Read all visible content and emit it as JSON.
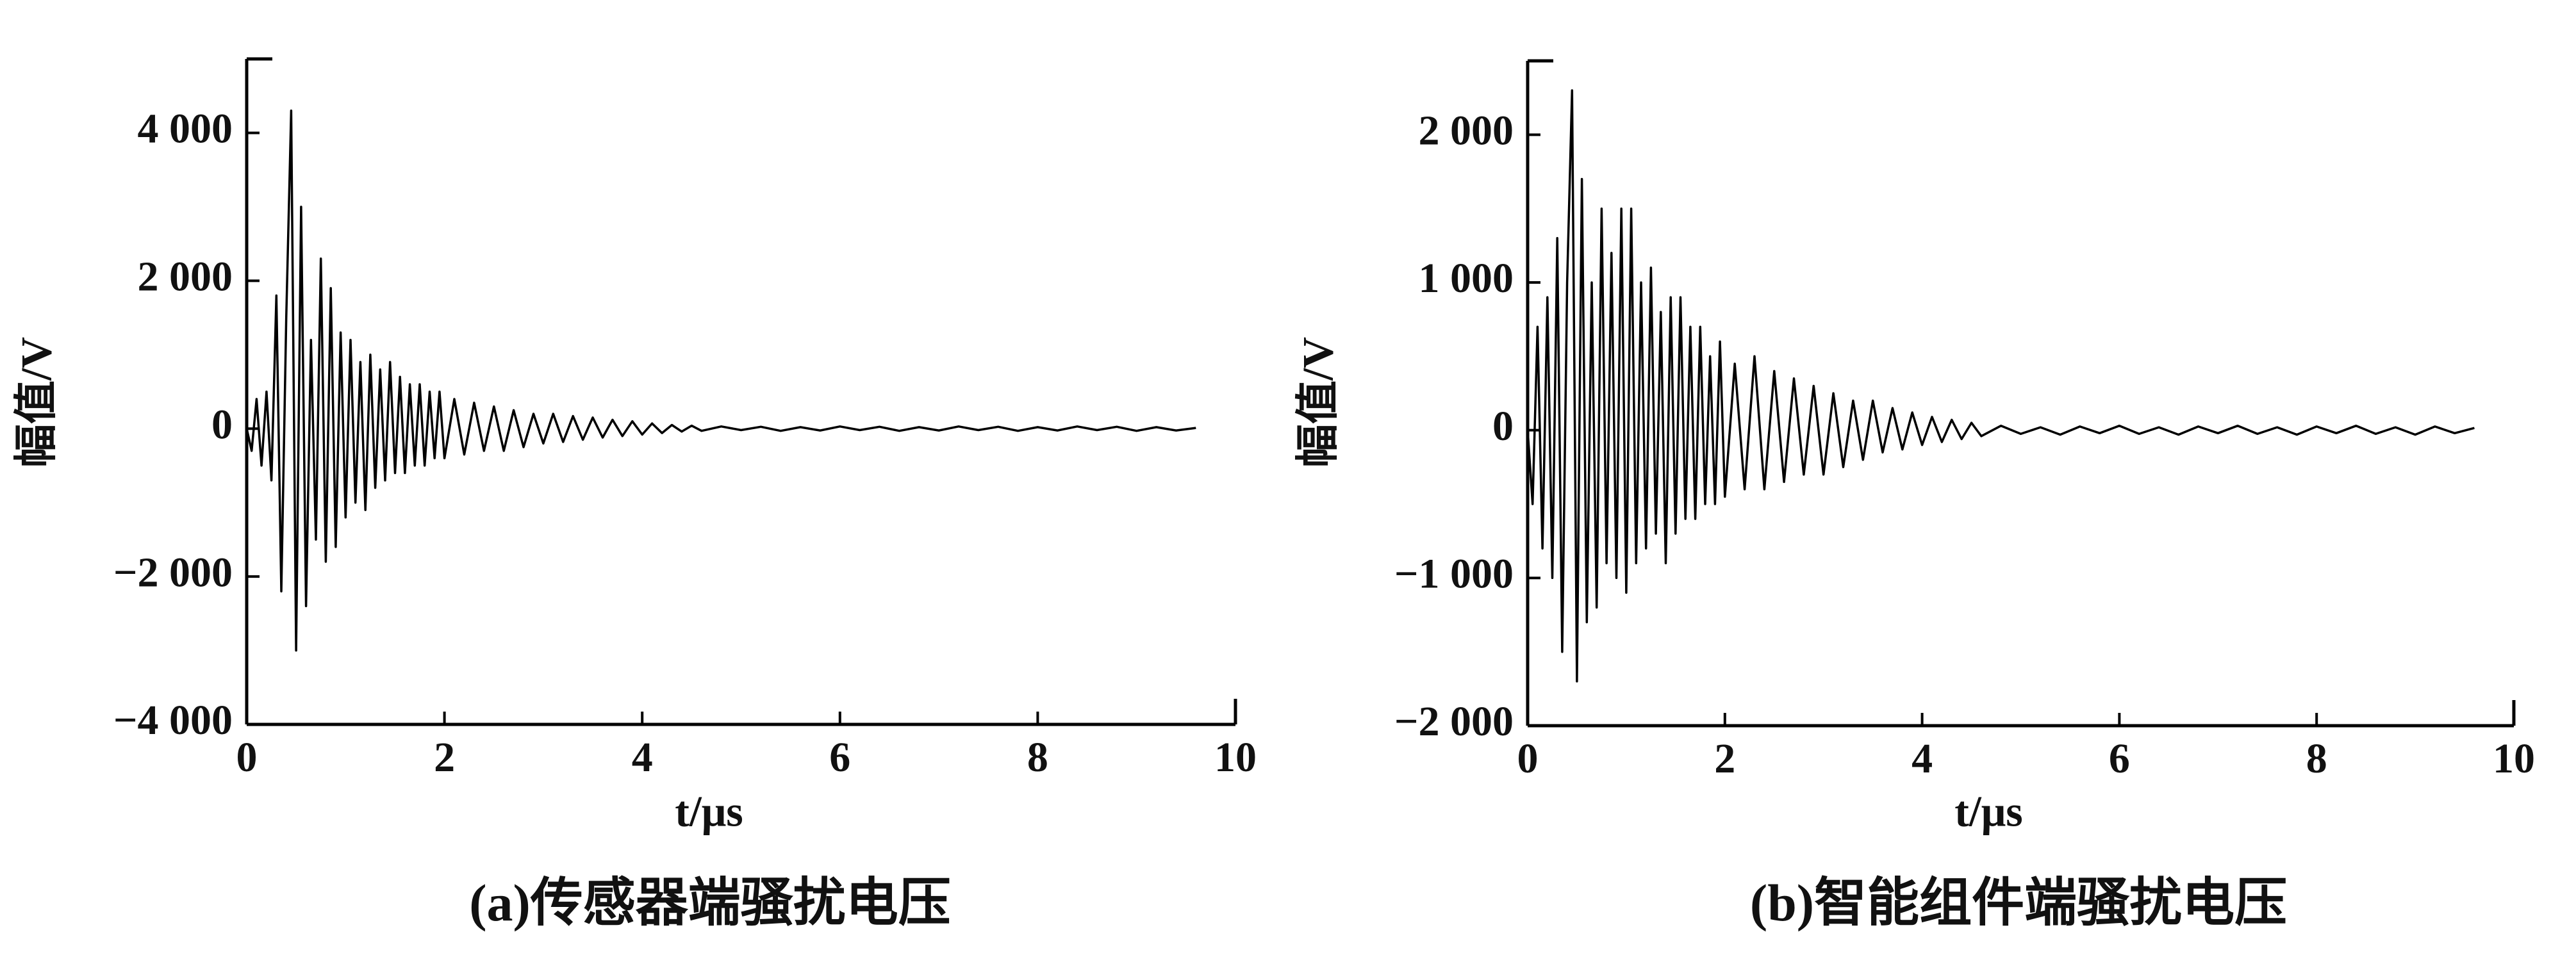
{
  "chart_data": [
    {
      "type": "line",
      "caption": "(a)传感器端骚扰电压",
      "x_label": "t/μs",
      "y_label": "幅值/V",
      "color": "#000000",
      "xlim": [
        0,
        10
      ],
      "xticks": [
        0,
        2,
        4,
        6,
        8,
        10
      ],
      "ylim": [
        -4000,
        5000
      ],
      "yticks": [
        {
          "value": -4000,
          "label": "−4 000"
        },
        {
          "value": -2000,
          "label": "−2 000"
        },
        0,
        {
          "value": 2000,
          "label": "2 000"
        },
        {
          "value": 4000,
          "label": "4 000"
        }
      ],
      "x": [
        0,
        0.05,
        0.1,
        0.15,
        0.2,
        0.25,
        0.3,
        0.35,
        0.4,
        0.45,
        0.5,
        0.55,
        0.6,
        0.65,
        0.7,
        0.75,
        0.8,
        0.85,
        0.9,
        0.95,
        1.0,
        1.05,
        1.1,
        1.15,
        1.2,
        1.25,
        1.3,
        1.35,
        1.4,
        1.45,
        1.5,
        1.55,
        1.6,
        1.65,
        1.7,
        1.75,
        1.8,
        1.85,
        1.9,
        1.95,
        2.0,
        2.1,
        2.2,
        2.3,
        2.4,
        2.5,
        2.6,
        2.7,
        2.8,
        2.9,
        3.0,
        3.1,
        3.2,
        3.3,
        3.4,
        3.5,
        3.6,
        3.7,
        3.8,
        3.9,
        4.0,
        4.1,
        4.2,
        4.3,
        4.4,
        4.5,
        4.6,
        4.8,
        5.0,
        5.2,
        5.4,
        5.6,
        5.8,
        6.0,
        6.2,
        6.4,
        6.6,
        6.8,
        7.0,
        7.2,
        7.4,
        7.6,
        7.8,
        8.0,
        8.2,
        8.4,
        8.6,
        8.8,
        9.0,
        9.2,
        9.4,
        9.6
      ],
      "values": [
        0,
        -300,
        400,
        -500,
        500,
        -700,
        1800,
        -2200,
        1500,
        4300,
        -3000,
        3000,
        -2400,
        1200,
        -1500,
        2300,
        -1800,
        1900,
        -1600,
        1300,
        -1200,
        1200,
        -1000,
        900,
        -1100,
        1000,
        -800,
        800,
        -700,
        900,
        -600,
        700,
        -600,
        600,
        -500,
        600,
        -500,
        500,
        -400,
        500,
        -400,
        400,
        -350,
        350,
        -300,
        300,
        -300,
        250,
        -250,
        200,
        -200,
        200,
        -180,
        170,
        -150,
        150,
        -120,
        120,
        -100,
        100,
        -80,
        70,
        -60,
        50,
        -40,
        40,
        -30,
        30,
        -20,
        25,
        -30,
        20,
        -25,
        30,
        -20,
        25,
        -30,
        20,
        -25,
        30,
        -20,
        25,
        -30,
        20,
        -25,
        30,
        -20,
        25,
        -30,
        20,
        -25,
        10
      ]
    },
    {
      "type": "line",
      "caption": "(b)智能组件端骚扰电压",
      "x_label": "t/μs",
      "y_label": "幅值/V",
      "color": "#000000",
      "xlim": [
        0,
        10
      ],
      "xticks": [
        0,
        2,
        4,
        6,
        8,
        10
      ],
      "ylim": [
        -2000,
        2500
      ],
      "yticks": [
        {
          "value": -2000,
          "label": "−2 000"
        },
        {
          "value": -1000,
          "label": "−1 000"
        },
        0,
        {
          "value": 1000,
          "label": "1 000"
        },
        {
          "value": 2000,
          "label": "2 000"
        }
      ],
      "x": [
        0,
        0.05,
        0.1,
        0.15,
        0.2,
        0.25,
        0.3,
        0.35,
        0.4,
        0.45,
        0.5,
        0.55,
        0.6,
        0.65,
        0.7,
        0.75,
        0.8,
        0.85,
        0.9,
        0.95,
        1.0,
        1.05,
        1.1,
        1.15,
        1.2,
        1.25,
        1.3,
        1.35,
        1.4,
        1.45,
        1.5,
        1.55,
        1.6,
        1.65,
        1.7,
        1.75,
        1.8,
        1.85,
        1.9,
        1.95,
        2.0,
        2.1,
        2.2,
        2.3,
        2.4,
        2.5,
        2.6,
        2.7,
        2.8,
        2.9,
        3.0,
        3.1,
        3.2,
        3.3,
        3.4,
        3.5,
        3.6,
        3.7,
        3.8,
        3.9,
        4.0,
        4.1,
        4.2,
        4.3,
        4.4,
        4.5,
        4.6,
        4.8,
        5.0,
        5.2,
        5.4,
        5.6,
        5.8,
        6.0,
        6.2,
        6.4,
        6.6,
        6.8,
        7.0,
        7.2,
        7.4,
        7.6,
        7.8,
        8.0,
        8.2,
        8.4,
        8.6,
        8.8,
        9.0,
        9.2,
        9.4,
        9.6
      ],
      "values": [
        0,
        -500,
        700,
        -800,
        900,
        -1000,
        1300,
        -1500,
        1000,
        2300,
        -1700,
        1700,
        -1300,
        1000,
        -1200,
        1500,
        -900,
        1200,
        -1000,
        1500,
        -1100,
        1500,
        -900,
        1000,
        -800,
        1100,
        -700,
        800,
        -900,
        900,
        -700,
        900,
        -600,
        700,
        -600,
        700,
        -500,
        500,
        -500,
        600,
        -450,
        450,
        -400,
        500,
        -400,
        400,
        -350,
        350,
        -300,
        300,
        -300,
        250,
        -250,
        200,
        -200,
        200,
        -150,
        150,
        -130,
        120,
        -100,
        90,
        -80,
        70,
        -60,
        50,
        -40,
        30,
        -25,
        20,
        -30,
        25,
        -20,
        30,
        -25,
        20,
        -30,
        25,
        -20,
        30,
        -25,
        20,
        -30,
        25,
        -20,
        30,
        -25,
        20,
        -30,
        25,
        -20,
        15
      ]
    }
  ]
}
